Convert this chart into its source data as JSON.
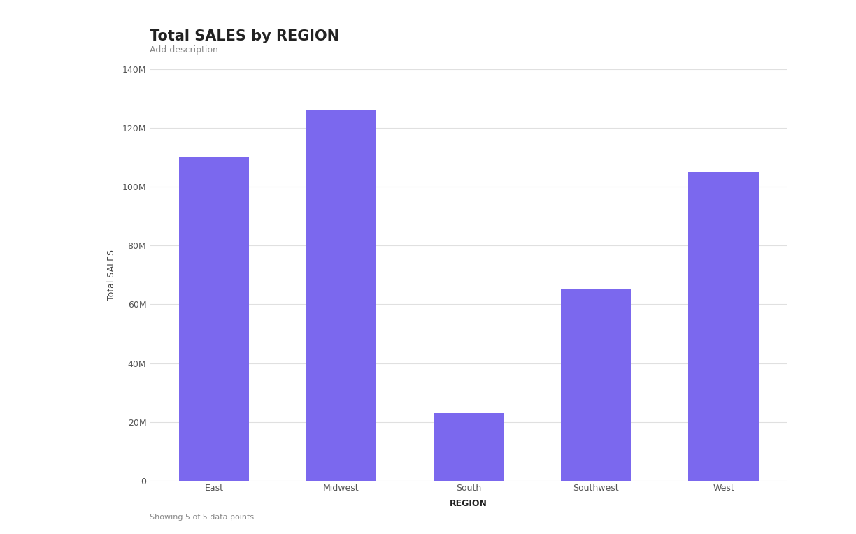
{
  "title": "Total SALES by REGION",
  "subtitle": "Add description",
  "categories": [
    "East",
    "Midwest",
    "South",
    "Southwest",
    "West"
  ],
  "values": [
    110000000,
    126000000,
    23000000,
    65000000,
    105000000
  ],
  "bar_color": "#7B68EE",
  "xlabel": "REGION",
  "ylabel": "Total SALES",
  "ylim": [
    0,
    140000000
  ],
  "yticks": [
    0,
    20000000,
    40000000,
    60000000,
    80000000,
    100000000,
    120000000,
    140000000
  ],
  "ytick_labels": [
    "0",
    "20M",
    "40M",
    "60M",
    "80M",
    "100M",
    "120M",
    "140M"
  ],
  "background_color": "#ffffff",
  "plot_bg_color": "#ffffff",
  "footer": "Showing 5 of 5 data points",
  "title_fontsize": 15,
  "subtitle_fontsize": 9,
  "axis_label_fontsize": 9,
  "tick_fontsize": 9,
  "footer_fontsize": 8,
  "bar_width": 0.55,
  "grid_color": "#e0e0e0",
  "title_color": "#222222",
  "subtitle_color": "#888888",
  "tick_color": "#555555",
  "xlabel_color": "#222222",
  "ylabel_color": "#444444",
  "footer_color": "#888888"
}
